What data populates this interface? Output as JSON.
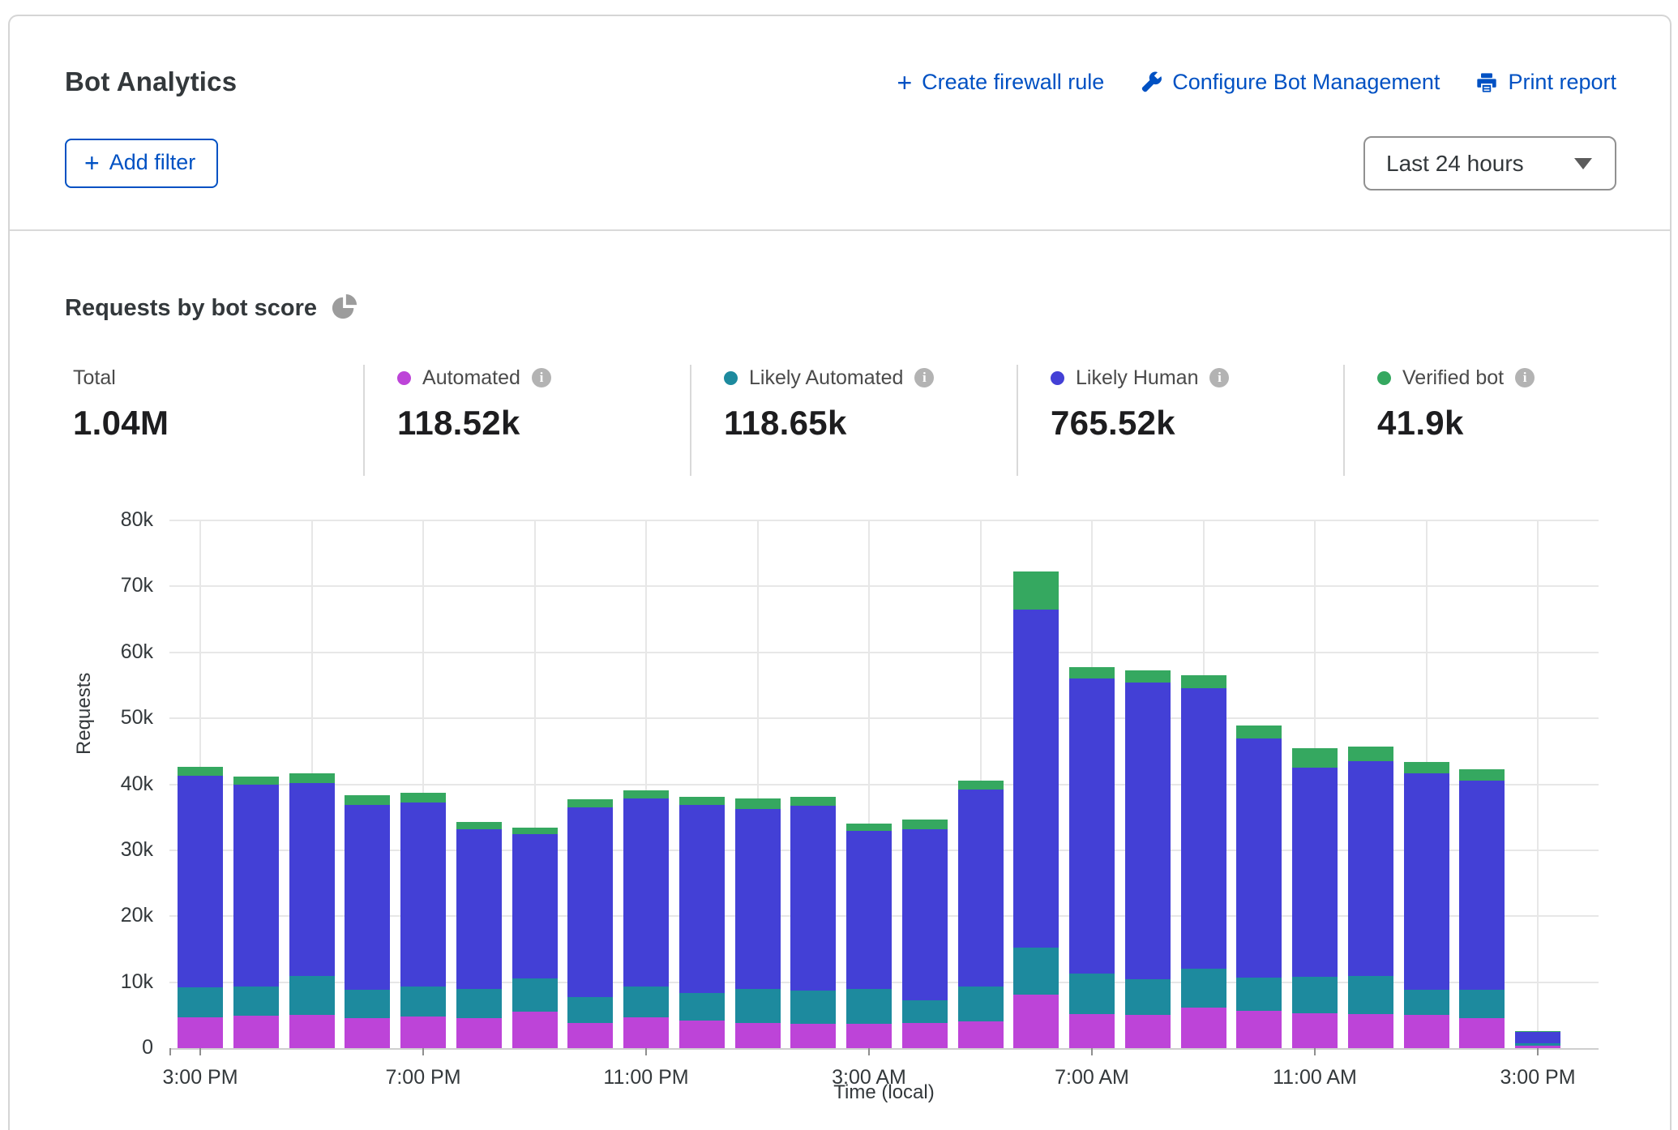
{
  "header": {
    "title": "Bot Analytics",
    "actions": {
      "create_firewall_rule": "Create firewall rule",
      "configure_bot_management": "Configure Bot Management",
      "print_report": "Print report"
    },
    "add_filter": "Add filter",
    "time_range": "Last 24 hours"
  },
  "section": {
    "title": "Requests by bot score"
  },
  "stats": {
    "total": {
      "label": "Total",
      "value": "1.04M"
    },
    "series": [
      {
        "label": "Automated",
        "value": "118.52k",
        "color": "#bd44d8"
      },
      {
        "label": "Likely Automated",
        "value": "118.65k",
        "color": "#1d8a9e"
      },
      {
        "label": "Likely Human",
        "value": "765.52k",
        "color": "#4340d6"
      },
      {
        "label": "Verified bot",
        "value": "41.9k",
        "color": "#35a860"
      }
    ]
  },
  "chart_data": {
    "type": "bar",
    "stacked": true,
    "title": "Requests by bot score",
    "xlabel": "Time (local)",
    "ylabel": "Requests",
    "unit": "thousands of requests",
    "ylim_k": [
      0,
      80
    ],
    "grid": true,
    "y_ticks": [
      "0",
      "10k",
      "20k",
      "30k",
      "40k",
      "50k",
      "60k",
      "70k",
      "80k"
    ],
    "x_tick_labels": [
      "3:00 PM",
      "7:00 PM",
      "11:00 PM",
      "3:00 AM",
      "7:00 AM",
      "11:00 AM",
      "3:00 PM"
    ],
    "categories": [
      "3:00 PM",
      "4:00 PM",
      "5:00 PM",
      "6:00 PM",
      "7:00 PM",
      "8:00 PM",
      "9:00 PM",
      "10:00 PM",
      "11:00 PM",
      "12:00 AM",
      "1:00 AM",
      "2:00 AM",
      "3:00 AM",
      "4:00 AM",
      "5:00 AM",
      "6:00 AM",
      "7:00 AM",
      "8:00 AM",
      "9:00 AM",
      "10:00 AM",
      "11:00 AM",
      "12:00 PM",
      "1:00 PM",
      "2:00 PM",
      "3:00 PM"
    ],
    "series": [
      {
        "name": "Automated",
        "color": "#bd44d8",
        "values_k": [
          4.7,
          4.9,
          5.1,
          4.5,
          4.8,
          4.5,
          5.5,
          3.8,
          4.7,
          4.2,
          3.8,
          3.7,
          3.7,
          3.8,
          4.0,
          8.1,
          5.2,
          5.1,
          6.2,
          5.6,
          5.3,
          5.2,
          5.0,
          4.5,
          0.4
        ]
      },
      {
        "name": "Likely Automated",
        "color": "#1d8a9e",
        "values_k": [
          4.5,
          4.4,
          5.9,
          4.4,
          4.5,
          4.5,
          5.1,
          4.0,
          4.7,
          4.2,
          5.2,
          5.0,
          5.3,
          3.5,
          5.3,
          7.2,
          6.1,
          5.3,
          5.9,
          5.1,
          5.5,
          5.7,
          3.9,
          4.4,
          0.3
        ]
      },
      {
        "name": "Likely Human",
        "color": "#4340d6",
        "values_k": [
          32.1,
          30.6,
          29.2,
          28.0,
          27.9,
          24.2,
          21.8,
          28.7,
          28.5,
          28.5,
          27.3,
          28.1,
          23.9,
          25.9,
          29.9,
          51.2,
          44.7,
          45.0,
          42.5,
          36.2,
          31.7,
          32.6,
          32.8,
          31.6,
          1.7
        ]
      },
      {
        "name": "Verified bot",
        "color": "#35a860",
        "values_k": [
          1.4,
          1.3,
          1.5,
          1.5,
          1.5,
          1.1,
          1.0,
          1.2,
          1.2,
          1.2,
          1.5,
          1.3,
          1.2,
          1.5,
          1.3,
          5.8,
          1.8,
          1.9,
          1.9,
          2.0,
          3.0,
          2.2,
          1.7,
          1.8,
          0.1
        ]
      }
    ]
  }
}
